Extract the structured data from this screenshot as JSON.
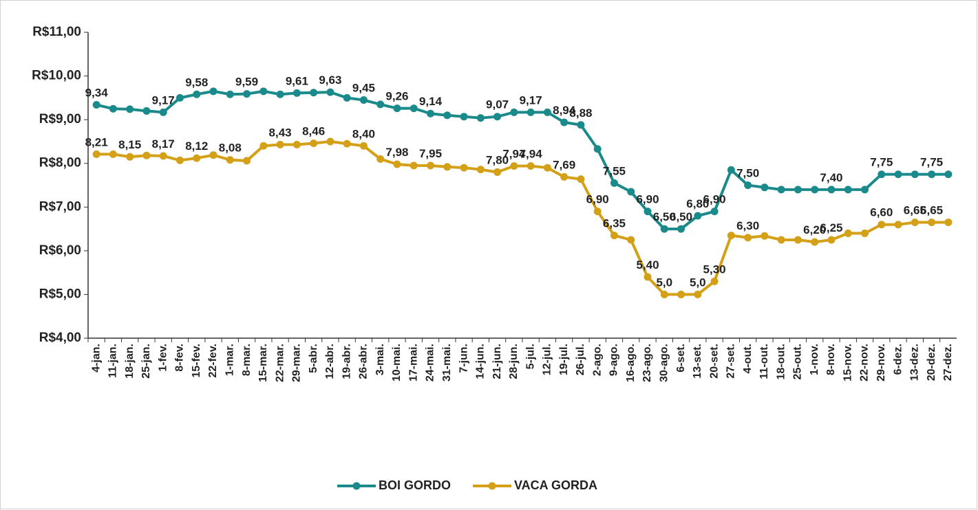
{
  "chart_data": {
    "type": "line",
    "categories": [
      "4-jan.",
      "11-jan.",
      "18-jan.",
      "25-jan.",
      "1-fev.",
      "8-fev.",
      "15-fev.",
      "22-fev.",
      "1-mar.",
      "8-mar.",
      "15-mar.",
      "22-mar.",
      "29-mar.",
      "5-abr.",
      "12-abr.",
      "19-abr.",
      "26-abr.",
      "3-mai.",
      "10-mai.",
      "17-mai.",
      "24-mai.",
      "31-mai.",
      "7-jun.",
      "14-jun.",
      "21-jun.",
      "28-jun.",
      "5-jul.",
      "12-jul.",
      "19-jul.",
      "26-jul.",
      "2-ago.",
      "9-ago.",
      "16-ago.",
      "23-ago.",
      "30-ago.",
      "6-set.",
      "13-set.",
      "20-set.",
      "27-set.",
      "4-out.",
      "11-out.",
      "18-out.",
      "25-out.",
      "1-nov.",
      "8-nov.",
      "15-nov.",
      "22-nov.",
      "29-nov.",
      "6-dez.",
      "13-dez.",
      "20-dez.",
      "27-dez."
    ],
    "series": [
      {
        "name": "BOI GORDO",
        "color": "#1a8a8a",
        "values": [
          9.34,
          9.25,
          9.24,
          9.2,
          9.17,
          9.5,
          9.58,
          9.65,
          9.58,
          9.59,
          9.65,
          9.58,
          9.61,
          9.62,
          9.63,
          9.5,
          9.45,
          9.35,
          9.26,
          9.26,
          9.14,
          9.1,
          9.07,
          9.04,
          9.07,
          9.17,
          9.17,
          9.17,
          8.94,
          8.88,
          8.33,
          7.55,
          7.35,
          6.9,
          6.5,
          6.5,
          6.8,
          6.9,
          7.85,
          7.5,
          7.45,
          7.4,
          7.4,
          7.4,
          7.4,
          7.4,
          7.4,
          7.75,
          7.75,
          7.75,
          7.75,
          7.75
        ],
        "value_labels": [
          "9,34",
          null,
          null,
          null,
          "9,17",
          null,
          "9,58",
          null,
          null,
          "9,59",
          null,
          null,
          "9,61",
          null,
          "9,63",
          null,
          "9,45",
          null,
          "9,26",
          null,
          "9,14",
          null,
          null,
          null,
          "9,07",
          null,
          "9,17",
          null,
          "8,94",
          "8,88",
          null,
          "7,55",
          null,
          "6,90",
          "6,50",
          "6,50",
          "6,80",
          "6,90",
          null,
          "7,50",
          null,
          null,
          null,
          null,
          "7,40",
          null,
          null,
          "7,75",
          null,
          null,
          "7,75",
          null
        ]
      },
      {
        "name": "VACA GORDA",
        "color": "#d4a017",
        "values": [
          8.21,
          8.21,
          8.15,
          8.18,
          8.17,
          8.07,
          8.12,
          8.19,
          8.08,
          8.06,
          8.4,
          8.43,
          8.43,
          8.46,
          8.5,
          8.45,
          8.4,
          8.1,
          7.98,
          7.95,
          7.95,
          7.92,
          7.9,
          7.86,
          7.8,
          7.94,
          7.94,
          7.9,
          7.69,
          7.64,
          6.9,
          6.35,
          6.25,
          5.4,
          5.0,
          5.0,
          5.0,
          5.3,
          6.35,
          6.3,
          6.34,
          6.25,
          6.25,
          6.2,
          6.25,
          6.4,
          6.4,
          6.6,
          6.6,
          6.65,
          6.65,
          6.65
        ],
        "value_labels": [
          "8,21",
          null,
          "8,15",
          null,
          "8,17",
          null,
          "8,12",
          null,
          "8,08",
          null,
          null,
          "8,43",
          null,
          "8,46",
          null,
          null,
          "8,40",
          null,
          "7,98",
          null,
          "7,95",
          null,
          null,
          null,
          "7,80",
          "7,94",
          "7,94",
          null,
          "7,69",
          null,
          "6,90",
          "6,35",
          null,
          "5,40",
          "5,0",
          null,
          "5,0",
          "5,30",
          null,
          "6,30",
          null,
          null,
          null,
          "6,20",
          "6,25",
          null,
          null,
          "6,60",
          null,
          "6,65",
          "6,65",
          null
        ]
      }
    ],
    "ylim": [
      4,
      11
    ],
    "yticks": [
      {
        "value": 4,
        "label": "R$4,00"
      },
      {
        "value": 5,
        "label": "R$5,00"
      },
      {
        "value": 6,
        "label": "R$6,00"
      },
      {
        "value": 7,
        "label": "R$7,00"
      },
      {
        "value": 8,
        "label": "R$8,00"
      },
      {
        "value": 9,
        "label": "R$9,00"
      },
      {
        "value": 10,
        "label": "R$10,00"
      },
      {
        "value": 11,
        "label": "R$11,00"
      }
    ],
    "grid": false,
    "legend": "bottom"
  }
}
